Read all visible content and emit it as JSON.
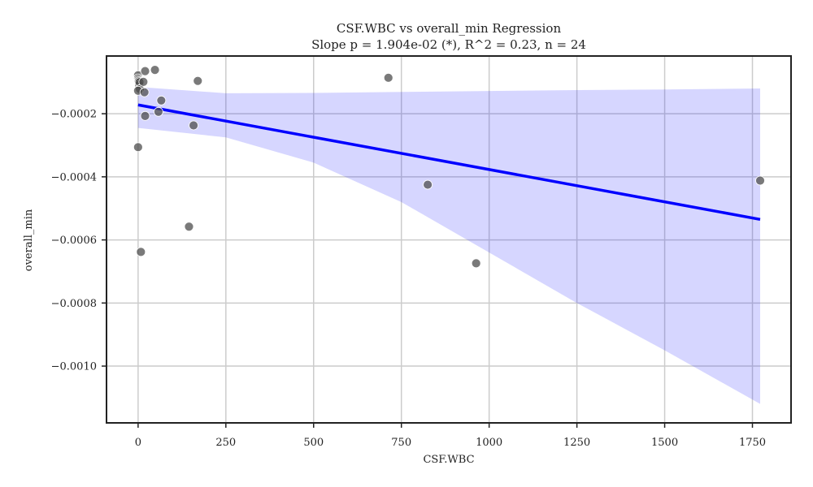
{
  "chart_data": {
    "type": "scatter",
    "title": "CSF.WBC vs overall_min Regression",
    "subtitle": "Slope p = 1.904e-02 (*), R^2 = 0.23, n = 24",
    "xlabel": "CSF.WBC",
    "ylabel": "overall_min",
    "xlim": [
      -90,
      1860
    ],
    "ylim": [
      -0.00118,
      -1.7e-05
    ],
    "xticks": [
      0,
      250,
      500,
      750,
      1000,
      1250,
      1500,
      1750
    ],
    "xtick_labels": [
      "0",
      "250",
      "500",
      "750",
      "1000",
      "1250",
      "1500",
      "1750"
    ],
    "yticks": [
      -0.001,
      -0.0008,
      -0.0006,
      -0.0004,
      -0.0002
    ],
    "ytick_labels": [
      "−0.0010",
      "−0.0008",
      "−0.0006",
      "−0.0004",
      "−0.0002"
    ],
    "grid": true,
    "points": [
      {
        "x": 0,
        "y": -7.8e-05
      },
      {
        "x": 0,
        "y": -8.8e-05
      },
      {
        "x": 1,
        "y": -9.3e-05
      },
      {
        "x": 2,
        "y": -9.7e-05
      },
      {
        "x": 3,
        "y": -0.000108
      },
      {
        "x": 4,
        "y": -0.0001
      },
      {
        "x": 5,
        "y": -0.000122
      },
      {
        "x": 0,
        "y": -0.000127
      },
      {
        "x": 15,
        "y": -9.9e-05
      },
      {
        "x": 18,
        "y": -0.000132
      },
      {
        "x": 20,
        "y": -6.5e-05
      },
      {
        "x": 48,
        "y": -6.1e-05
      },
      {
        "x": 20,
        "y": -0.000207
      },
      {
        "x": 58,
        "y": -0.000194
      },
      {
        "x": 66,
        "y": -0.000158
      },
      {
        "x": 0,
        "y": -0.000306
      },
      {
        "x": 8,
        "y": -0.000638
      },
      {
        "x": 145,
        "y": -0.000558
      },
      {
        "x": 158,
        "y": -0.000237
      },
      {
        "x": 170,
        "y": -9.6e-05
      },
      {
        "x": 713,
        "y": -8.6e-05
      },
      {
        "x": 825,
        "y": -0.000425
      },
      {
        "x": 963,
        "y": -0.000674
      },
      {
        "x": 1772,
        "y": -0.000412
      }
    ],
    "regression_line": {
      "x": [
        0,
        1772
      ],
      "y": [
        -0.000172,
        -0.000535
      ]
    },
    "confidence_band": {
      "x": [
        0,
        250,
        500,
        750,
        1000,
        1250,
        1500,
        1772
      ],
      "upper": [
        -0.000115,
        -0.000135,
        -0.000134,
        -0.000131,
        -0.000128,
        -0.000125,
        -0.000123,
        -0.00012
      ],
      "lower": [
        -0.000245,
        -0.000275,
        -0.000355,
        -0.00048,
        -0.00064,
        -0.0008,
        -0.00095,
        -0.00112
      ]
    },
    "colors": {
      "points": "#4d4d4d",
      "line": "#0000ff",
      "band": "#0000ff",
      "grid": "#cccccc",
      "axes": "#222222"
    }
  }
}
